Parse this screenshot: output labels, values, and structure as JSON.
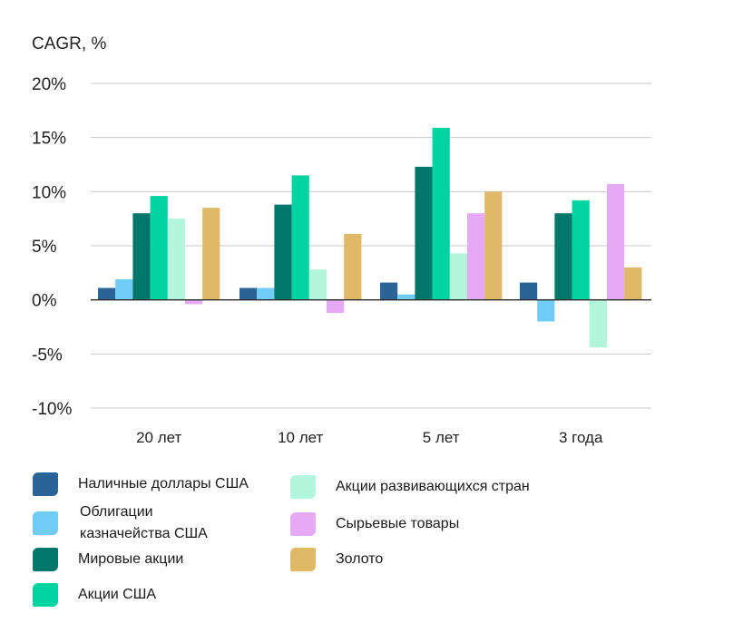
{
  "chart_data": {
    "type": "bar",
    "ylabel": "CAGR, %",
    "ylim": [
      -10,
      20
    ],
    "yticks": [
      20,
      15,
      10,
      5,
      0,
      -5,
      -10
    ],
    "ytick_labels": [
      "20%",
      "15%",
      "10%",
      "5%",
      "0%",
      "-5%",
      "-10%"
    ],
    "grid": true,
    "categories": [
      "20 лет",
      "10 лет",
      "5 лет",
      "3 года"
    ],
    "series": [
      {
        "name": "Наличные доллары США",
        "color": "#2a6496",
        "values": [
          1.1,
          1.1,
          1.6,
          1.6
        ]
      },
      {
        "name": "Облигации казначейства США",
        "color": "#6fcdf5",
        "values": [
          1.9,
          1.1,
          0.5,
          -2.0
        ]
      },
      {
        "name": "Мировые акции",
        "color": "#00776a",
        "values": [
          8.0,
          8.8,
          12.3,
          8.0
        ]
      },
      {
        "name": "Акции США",
        "color": "#00d4a0",
        "values": [
          9.6,
          11.5,
          15.9,
          9.2
        ]
      },
      {
        "name": "Акции развивающихся стран",
        "color": "#b3f5dd",
        "values": [
          7.5,
          2.8,
          4.3,
          -4.4
        ]
      },
      {
        "name": "Сырьевые товары",
        "color": "#e5a9f5",
        "values": [
          -0.4,
          -1.2,
          8.0,
          10.7
        ]
      },
      {
        "name": "Золото",
        "color": "#e0b866",
        "values": [
          8.5,
          6.1,
          10.0,
          3.0
        ]
      }
    ],
    "legend_position": "bottom"
  },
  "legend": {
    "items": [
      {
        "label": "Наличные доллары США",
        "color": "#2a6496"
      },
      {
        "label": "Облигации казначейства США",
        "line1": "Облигации",
        "line2": "казначейства США",
        "color": "#6fcdf5"
      },
      {
        "label": "Мировые акции",
        "color": "#00776a"
      },
      {
        "label": "Акции США",
        "color": "#00d4a0"
      },
      {
        "label": "Акции развивающихся стран",
        "color": "#b3f5dd"
      },
      {
        "label": "Сырьевые товары",
        "color": "#e5a9f5"
      },
      {
        "label": "Золото",
        "color": "#e0b866"
      }
    ]
  }
}
